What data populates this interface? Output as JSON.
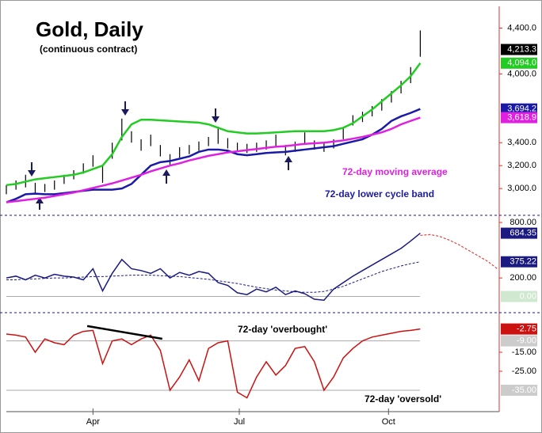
{
  "chart_data": [
    {
      "type": "ohlc",
      "title": "Gold, Daily",
      "subtitle": "(continuous contract)",
      "ylim": [
        2780,
        4590
      ],
      "yticks": [
        {
          "value": 3000,
          "label": "3,000.0"
        },
        {
          "value": 3200,
          "label": "3,200.0"
        },
        {
          "value": 3400,
          "label": "3,400.0"
        },
        {
          "value": 4000,
          "label": "4,000.0"
        },
        {
          "value": 4400,
          "label": "4,400.0"
        }
      ],
      "color": "#000000",
      "high": [
        3030,
        3070,
        3120,
        3050,
        3040,
        3070,
        3120,
        3160,
        3220,
        3290,
        3200,
        3400,
        3610,
        3500,
        3430,
        3470,
        3380,
        3300,
        3360,
        3380,
        3410,
        3450,
        3540,
        3440,
        3400,
        3390,
        3400,
        3420,
        3470,
        3380,
        3410,
        3490,
        3420,
        3400,
        3430,
        3530,
        3640,
        3670,
        3720,
        3780,
        3850,
        3940,
        4060,
        4380
      ],
      "low": [
        2950,
        2990,
        3010,
        2960,
        2970,
        2990,
        3040,
        3080,
        3130,
        3190,
        3050,
        3260,
        3420,
        3400,
        3330,
        3370,
        3280,
        3200,
        3270,
        3300,
        3330,
        3370,
        3390,
        3350,
        3320,
        3310,
        3320,
        3340,
        3370,
        3290,
        3320,
        3390,
        3340,
        3320,
        3350,
        3430,
        3550,
        3580,
        3630,
        3680,
        3750,
        3830,
        3920,
        4150
      ],
      "last_value": 4213.3,
      "last_label": "4,213.3",
      "series": [
        {
          "color": "#22cc22",
          "end_label": "4,094.0",
          "values": [
            3030,
            3040,
            3060,
            3080,
            3090,
            3100,
            3110,
            3120,
            3140,
            3170,
            3200,
            3300,
            3450,
            3560,
            3600,
            3600,
            3595,
            3590,
            3585,
            3580,
            3575,
            3560,
            3530,
            3500,
            3490,
            3480,
            3480,
            3485,
            3490,
            3495,
            3500,
            3500,
            3500,
            3500,
            3510,
            3530,
            3570,
            3630,
            3690,
            3760,
            3830,
            3900,
            3980,
            4094
          ]
        },
        {
          "name": "72-day lower cycle band",
          "color": "#1a1aa6",
          "end_label": "3,694.2",
          "values": [
            2880,
            2910,
            2950,
            2955,
            2950,
            2950,
            2960,
            2970,
            2980,
            2990,
            2990,
            2990,
            3000,
            3040,
            3120,
            3200,
            3230,
            3240,
            3260,
            3280,
            3320,
            3340,
            3340,
            3330,
            3300,
            3290,
            3300,
            3310,
            3315,
            3320,
            3330,
            3340,
            3350,
            3360,
            3370,
            3390,
            3410,
            3430,
            3470,
            3520,
            3590,
            3630,
            3660,
            3694.2
          ]
        },
        {
          "name": "72-day moving average",
          "color": "#e020e0",
          "end_label": "3,618.9",
          "values": [
            2880,
            2890,
            2900,
            2910,
            2920,
            2935,
            2950,
            2965,
            2985,
            3005,
            3025,
            3045,
            3070,
            3095,
            3120,
            3150,
            3175,
            3200,
            3220,
            3245,
            3265,
            3285,
            3300,
            3315,
            3325,
            3335,
            3345,
            3355,
            3365,
            3370,
            3380,
            3390,
            3395,
            3400,
            3410,
            3420,
            3435,
            3450,
            3470,
            3490,
            3520,
            3560,
            3590,
            3618.9
          ]
        }
      ]
    },
    {
      "type": "line",
      "ylim": [
        -158,
        869
      ],
      "yticks": [
        {
          "value": 200,
          "label": "200.00"
        },
        {
          "value": 800,
          "label": "800.00"
        }
      ],
      "reference_lines": [
        {
          "value": 0,
          "label": "0.00",
          "color": "#cfe8cf"
        }
      ],
      "series": [
        {
          "color": "#1a1a80",
          "end_label": "684.35",
          "values": [
            200,
            220,
            180,
            230,
            200,
            240,
            220,
            210,
            180,
            300,
            60,
            250,
            400,
            300,
            280,
            250,
            300,
            200,
            260,
            230,
            270,
            250,
            150,
            120,
            40,
            20,
            80,
            50,
            100,
            20,
            60,
            30,
            -30,
            -40,
            80,
            150,
            220,
            280,
            340,
            400,
            460,
            520,
            600,
            684.35
          ]
        },
        {
          "color": "#1a1a80",
          "dashed": true,
          "end_label": "375.22",
          "values": [
            180,
            180,
            190,
            190,
            195,
            200,
            200,
            205,
            210,
            215,
            215,
            220,
            225,
            230,
            230,
            230,
            225,
            220,
            215,
            205,
            195,
            185,
            170,
            155,
            140,
            120,
            100,
            85,
            70,
            60,
            50,
            45,
            45,
            55,
            80,
            110,
            150,
            190,
            230,
            270,
            300,
            330,
            355,
            375.22
          ]
        },
        {
          "color": "#e02020",
          "dashed": true,
          "x": [
            43,
            44,
            45,
            46,
            47,
            48,
            49,
            50,
            51
          ],
          "values": [
            660,
            670,
            650,
            610,
            560,
            500,
            440,
            380,
            300
          ]
        }
      ]
    },
    {
      "type": "line",
      "ylim": [
        -46.25,
        5
      ],
      "yticks": [
        {
          "value": -25,
          "label": "-25.00"
        },
        {
          "value": -15,
          "label": "-15.00"
        }
      ],
      "reference_lines": [
        {
          "value": -9,
          "label": "-9.00",
          "color": "#cccccc",
          "text": "72-day 'overbought'"
        },
        {
          "value": -35,
          "label": "-35.00",
          "color": "#cccccc",
          "text": "72-day 'oversold'"
        }
      ],
      "xlim": [
        0,
        51.2
      ],
      "xticks": [
        {
          "value": 9,
          "label": "Apr"
        },
        {
          "value": 24.2,
          "label": "Jul"
        },
        {
          "value": 39.7,
          "label": "Oct"
        }
      ],
      "trendline": {
        "x": [
          8.4,
          16.2
        ],
        "values": [
          -1.2,
          -7.9
        ]
      },
      "series": [
        {
          "color": "#cc1111",
          "end_label": "-2.75",
          "values": [
            -5.4,
            -6,
            -7,
            -15,
            -8,
            -10,
            -11,
            -6,
            -4,
            -3.5,
            -21,
            -9,
            -8,
            -11,
            -8,
            -6,
            -14,
            -35,
            -28,
            -19,
            -30,
            -13,
            -10,
            -9,
            -36,
            -39,
            -28,
            -20,
            -27,
            -22,
            -13,
            -12,
            -20,
            -35,
            -28,
            -18,
            -13,
            -9,
            -7,
            -6,
            -5,
            -4,
            -3.5,
            -2.75
          ]
        }
      ]
    }
  ]
}
